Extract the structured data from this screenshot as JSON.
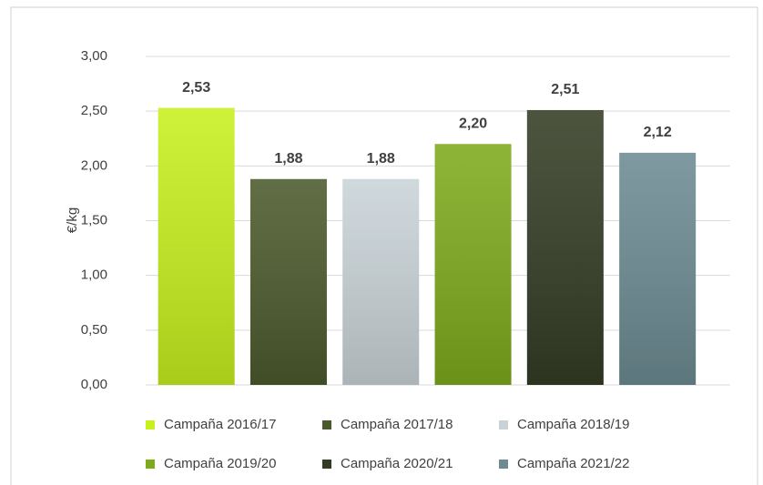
{
  "chart_data": {
    "type": "bar",
    "y_label": "€/kg",
    "series": [
      {
        "name": "Campaña 2016/17",
        "color": "#c6f01e",
        "values": [
          2.53
        ],
        "value_labels": [
          "2,53"
        ]
      },
      {
        "name": "Campaña 2017/18",
        "color": "#4b5a2c",
        "values": [
          1.88
        ],
        "value_labels": [
          "1,88"
        ]
      },
      {
        "name": "Campaña 2018/19",
        "color": "#c9d3d7",
        "values": [
          1.88
        ],
        "value_labels": [
          "1,88"
        ]
      },
      {
        "name": "Campaña 2019/20",
        "color": "#7eaa1c",
        "values": [
          2.2
        ],
        "value_labels": [
          "2,20"
        ]
      },
      {
        "name": "Campaña 2020/21",
        "color": "#343c24",
        "values": [
          2.51
        ],
        "value_labels": [
          "2,51"
        ]
      },
      {
        "name": "Campaña 2021/22",
        "color": "#6c8b92",
        "values": [
          2.12
        ],
        "value_labels": [
          "2,12"
        ]
      }
    ],
    "ylim": [
      0,
      3
    ],
    "yticks": [
      {
        "value": 0,
        "label": "0,00"
      },
      {
        "value": 0.5,
        "label": "0,50"
      },
      {
        "value": 1,
        "label": "1,00"
      },
      {
        "value": 1.5,
        "label": "1,50"
      },
      {
        "value": 2,
        "label": "2,00"
      },
      {
        "value": 2.5,
        "label": "2,50"
      },
      {
        "value": 3,
        "label": "3,00"
      }
    ],
    "grid": true,
    "legend": "bottom"
  }
}
